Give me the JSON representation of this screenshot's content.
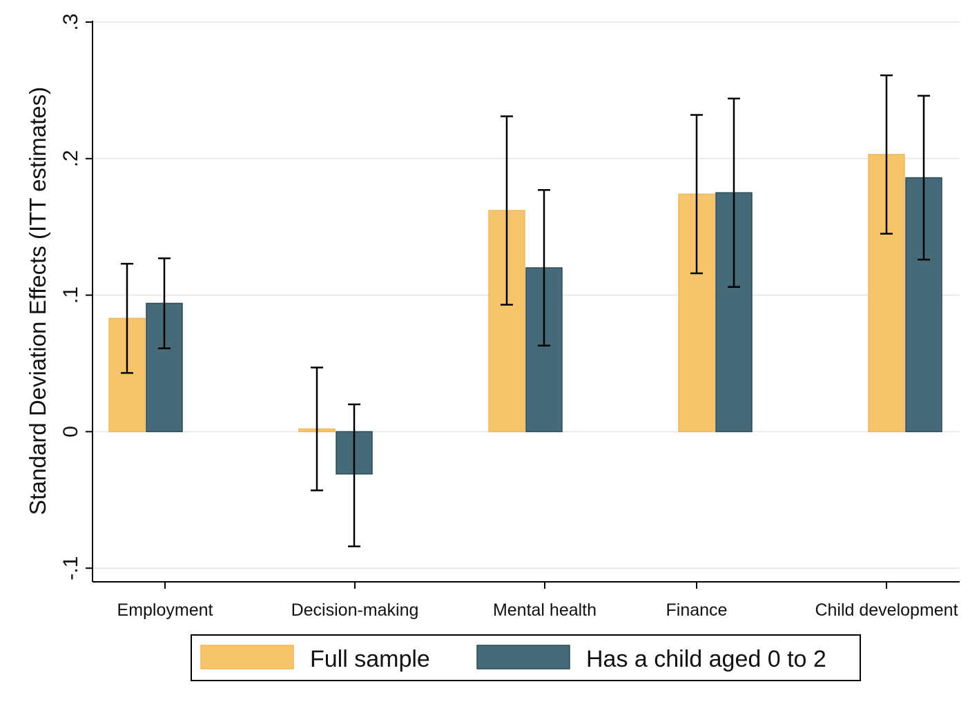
{
  "chart_data": {
    "type": "bar",
    "title": "",
    "xlabel": "",
    "ylabel": "Standard Deviation Effects (ITT estimates)",
    "ylim": [
      -0.11,
      0.301
    ],
    "yticks": [
      -0.1,
      0,
      0.1,
      0.2,
      0.3
    ],
    "ytick_labels": [
      "-.1",
      "0",
      ".1",
      ".2",
      ".3"
    ],
    "grid": true,
    "legend_position": "bottom",
    "categories": [
      "Employment",
      "Decision-making",
      "Mental health",
      "Finance",
      "Child development"
    ],
    "series": [
      {
        "name": "Full sample",
        "color": "#f5c46b",
        "values": [
          0.083,
          0.002,
          0.162,
          0.174,
          0.203
        ],
        "ci_low": [
          0.043,
          -0.043,
          0.093,
          0.116,
          0.145
        ],
        "ci_high": [
          0.123,
          0.047,
          0.231,
          0.232,
          0.261
        ]
      },
      {
        "name": "Has a child aged 0 to 2",
        "color": "#466a78",
        "values": [
          0.094,
          -0.031,
          0.12,
          0.175,
          0.186
        ],
        "ci_low": [
          0.061,
          -0.084,
          0.063,
          0.106,
          0.126
        ],
        "ci_high": [
          0.127,
          0.02,
          0.177,
          0.244,
          0.246
        ]
      }
    ]
  }
}
